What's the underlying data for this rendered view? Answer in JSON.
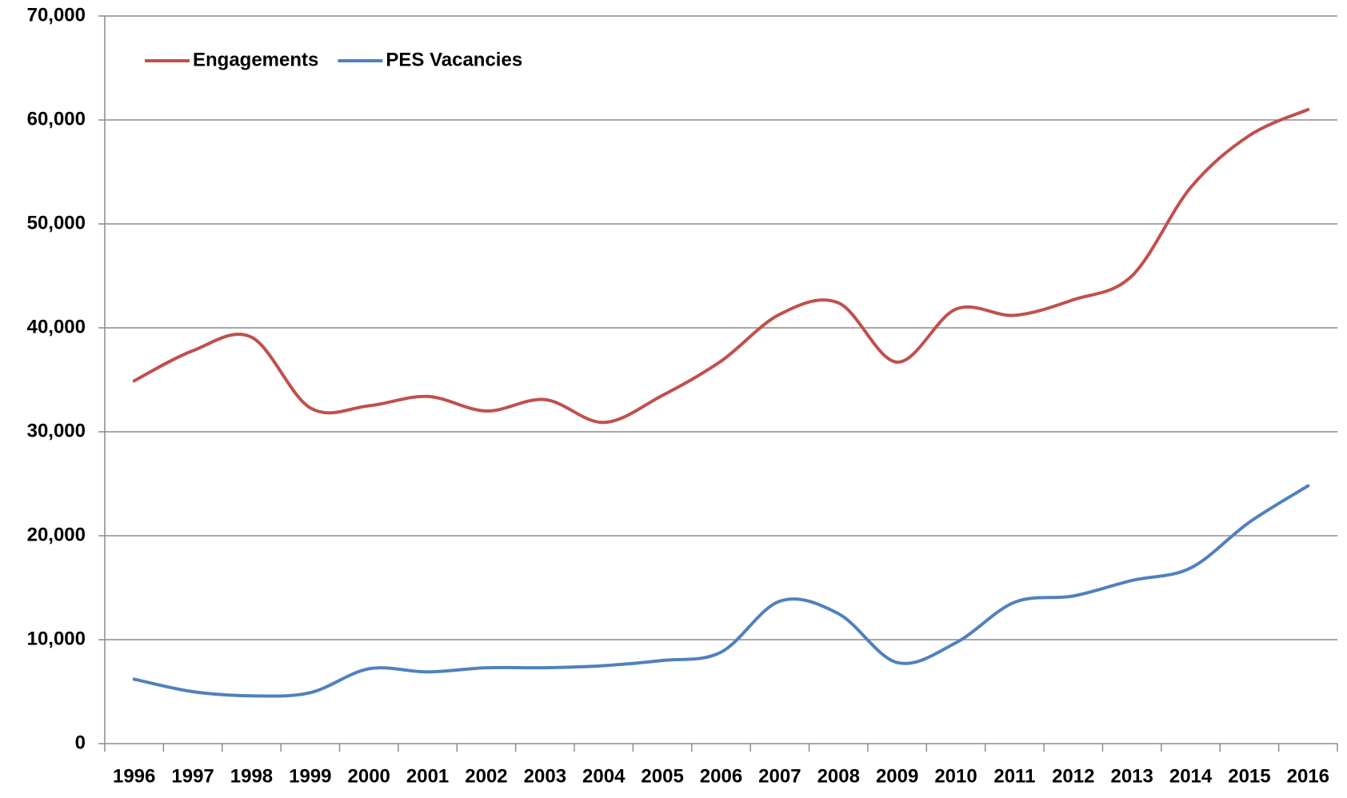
{
  "chart_data": {
    "type": "line",
    "categories": [
      "1996",
      "1997",
      "1998",
      "1999",
      "2000",
      "2001",
      "2002",
      "2003",
      "2004",
      "2005",
      "2006",
      "2007",
      "2008",
      "2009",
      "2010",
      "2011",
      "2012",
      "2013",
      "2014",
      "2015",
      "2016"
    ],
    "series": [
      {
        "name": "Engagements",
        "color": "#c0504d",
        "values": [
          34900,
          37800,
          39100,
          32300,
          32500,
          33400,
          32000,
          33100,
          30900,
          33500,
          36800,
          41300,
          42400,
          36700,
          41800,
          41200,
          42700,
          45000,
          53500,
          58500,
          61000
        ]
      },
      {
        "name": "PES Vacancies",
        "color": "#4f81bd",
        "values": [
          6200,
          5000,
          4600,
          4900,
          7200,
          6900,
          7300,
          7300,
          7500,
          8000,
          8800,
          13700,
          12500,
          7800,
          9700,
          13600,
          14200,
          15700,
          16900,
          21300,
          24800
        ]
      }
    ],
    "ylim": [
      0,
      70000
    ],
    "yticks": [
      0,
      {
        "value": 10000,
        "label": "10,000"
      },
      {
        "value": 20000,
        "label": "20,000"
      },
      {
        "value": 30000,
        "label": "30,000"
      },
      {
        "value": 40000,
        "label": "40,000"
      },
      {
        "value": 50000,
        "label": "50,000"
      },
      {
        "value": 60000,
        "label": "60,000"
      },
      {
        "value": 70000,
        "label": "70,000"
      }
    ],
    "grid": true,
    "smooth": true,
    "legend": "upper left"
  }
}
